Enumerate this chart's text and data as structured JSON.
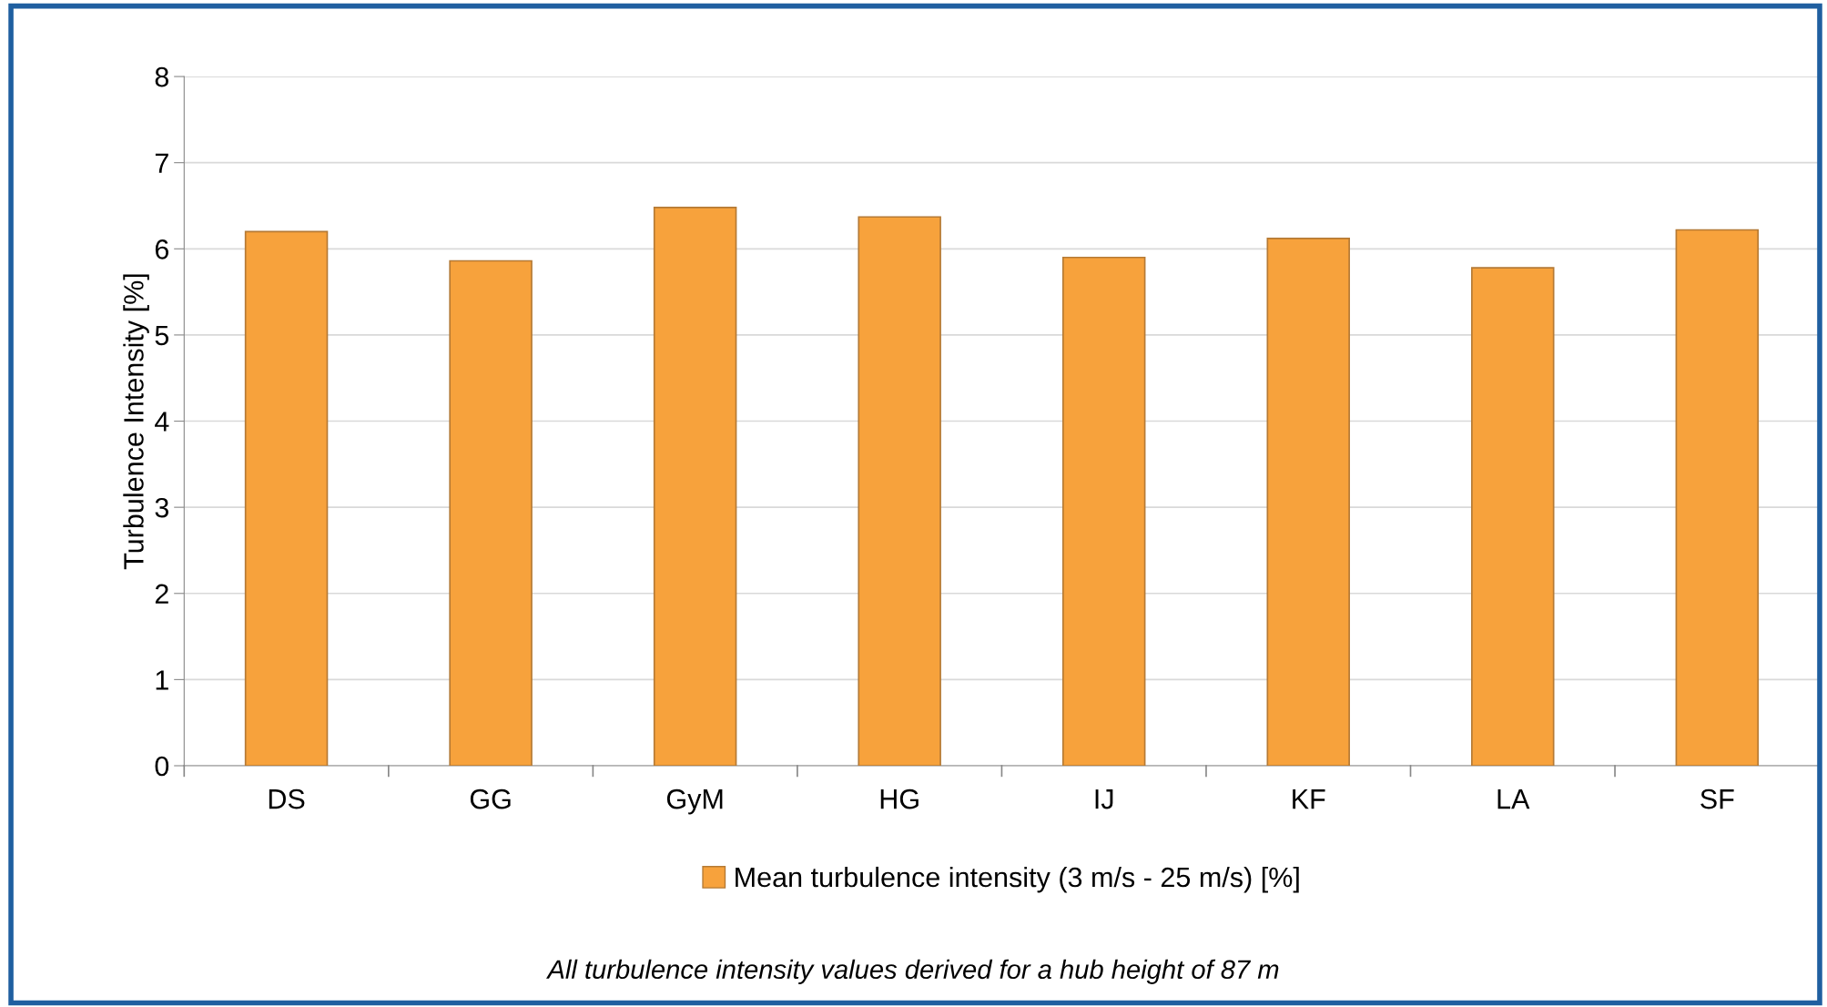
{
  "chart_data": {
    "type": "bar",
    "ylabel": "Turbulence Intensity [%]",
    "categories": [
      "DS",
      "GG",
      "GyM",
      "HG",
      "IJ",
      "KF",
      "LA",
      "SF"
    ],
    "series": [
      {
        "name": "Mean turbulence intensity (3 m/s - 25 m/s) [%]",
        "color": "#f7a23c",
        "values": [
          6.2,
          5.86,
          6.48,
          6.37,
          5.9,
          6.12,
          5.78,
          6.22
        ]
      }
    ],
    "ylim": [
      0,
      8
    ],
    "yticks": [
      0,
      1,
      2,
      3,
      4,
      5,
      6,
      7,
      8
    ],
    "grid": "y",
    "legend": "bottom",
    "annotations": [
      "All turbulence intensity values derived for a hub height of 87 m"
    ]
  }
}
